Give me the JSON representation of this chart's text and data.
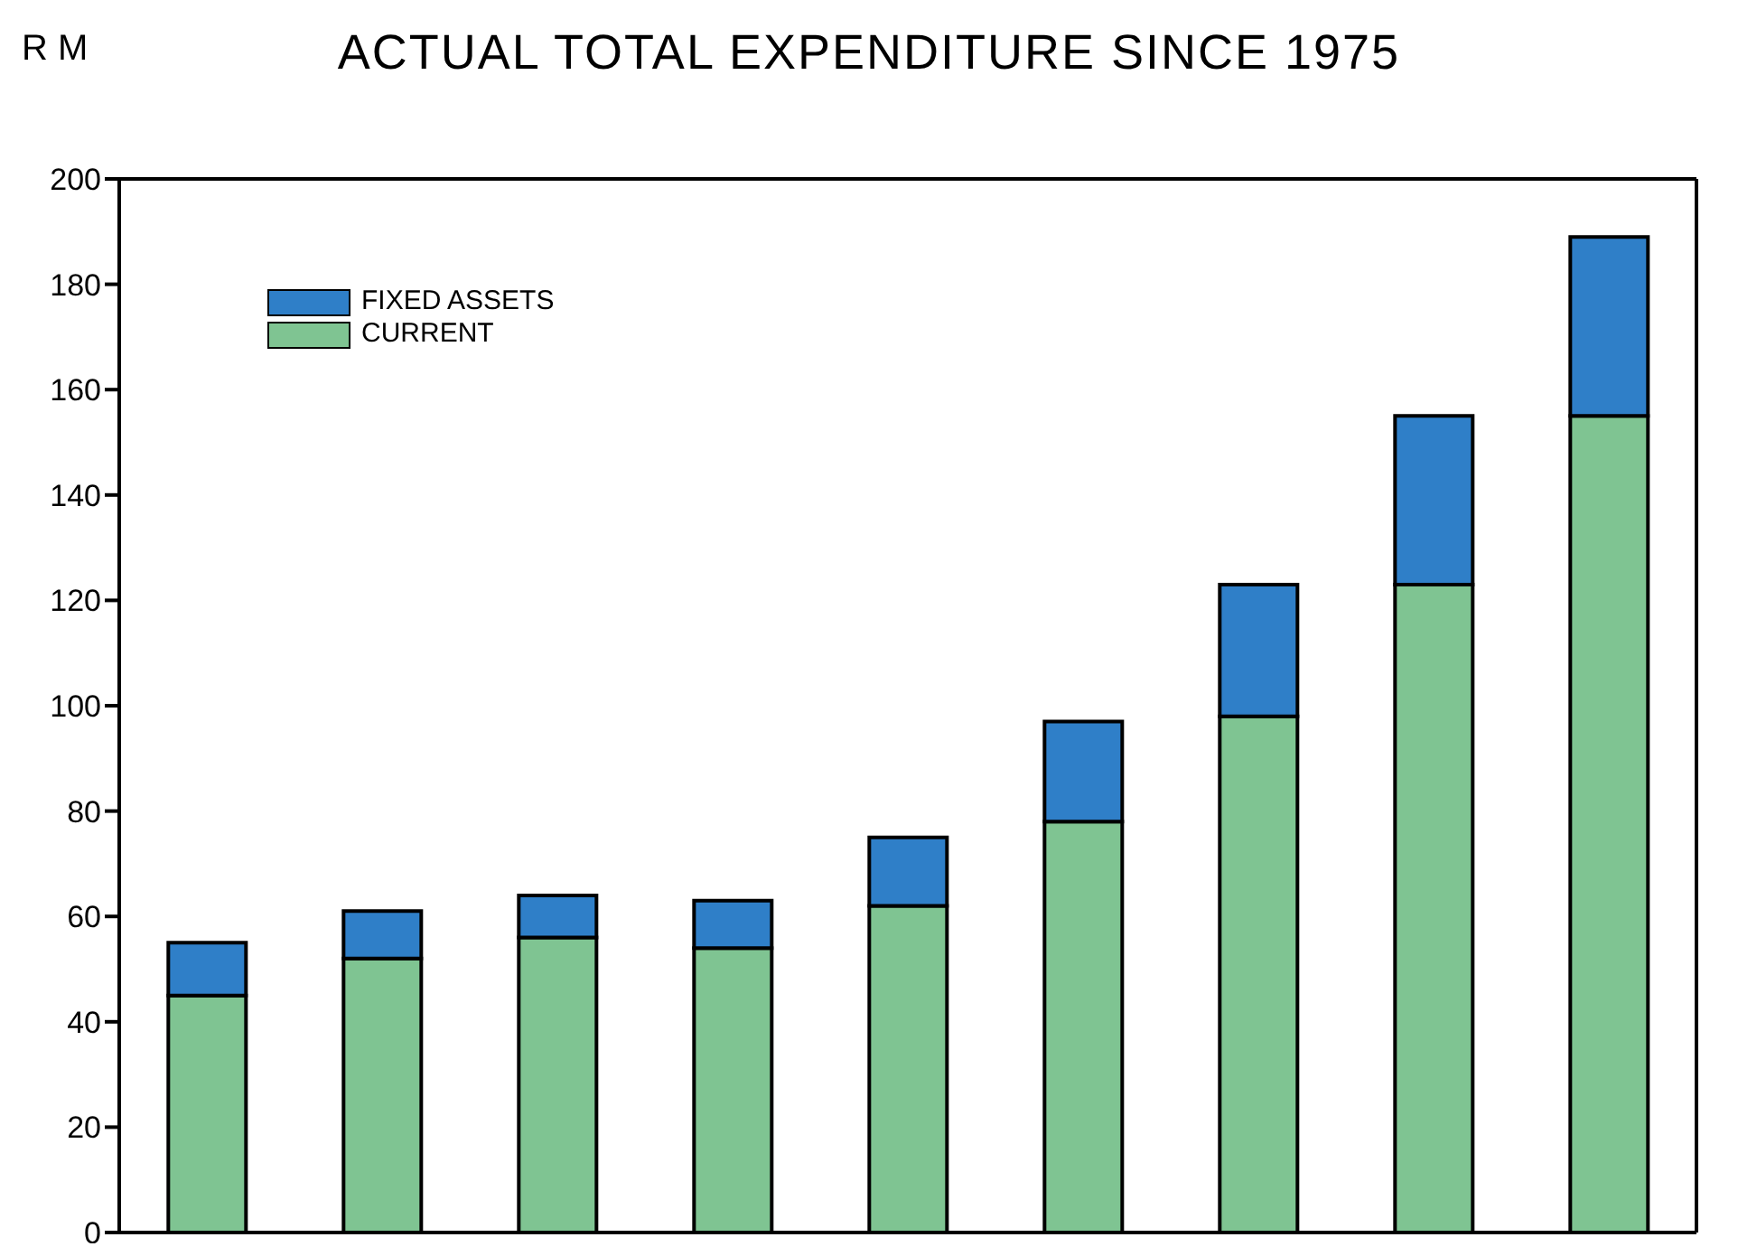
{
  "chart_data": {
    "type": "bar",
    "title": "ACTUAL TOTAL EXPENDITURE SINCE 1975",
    "ylabel": "R M",
    "categories": [
      null,
      null,
      null,
      null,
      null,
      null,
      null,
      null,
      null
    ],
    "stacked": true,
    "series": [
      {
        "name": "CURRENT",
        "color": "#7fc492",
        "values": [
          45,
          52,
          56,
          54,
          62,
          78,
          98,
          123,
          155
        ]
      },
      {
        "name": "FIXED ASSETS",
        "color": "#2f7fc8",
        "values": [
          10,
          9,
          8,
          9,
          13,
          19,
          25,
          32,
          34
        ]
      }
    ],
    "ylim": [
      0,
      200
    ],
    "yticks": [
      0,
      20,
      40,
      60,
      80,
      100,
      120,
      140,
      160,
      180,
      200
    ],
    "grid": false,
    "legend": "top left"
  }
}
